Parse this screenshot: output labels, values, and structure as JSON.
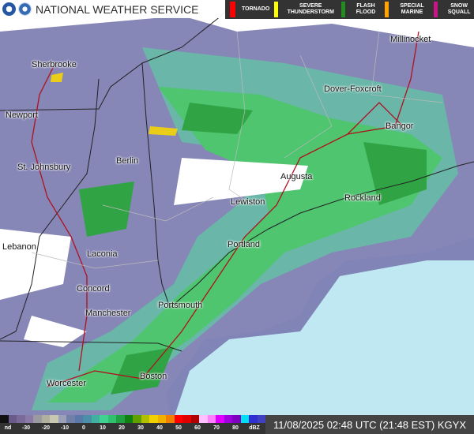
{
  "header": {
    "title": "NATIONAL WEATHER SERVICE",
    "logo_text": [
      "NOAA",
      "NWS"
    ]
  },
  "warnings": [
    {
      "label": "TORNADO",
      "color": "#ff0000"
    },
    {
      "label": "SEVERE THUNDERSTORM",
      "color": "#ffff00"
    },
    {
      "label": "FLASH FLOOD",
      "color": "#228b22"
    },
    {
      "label": "SPECIAL MARINE",
      "color": "#ffa500"
    },
    {
      "label": "SNOW SQUALL",
      "color": "#c71585"
    }
  ],
  "cities": [
    "Sherbrooke",
    "Millinocket",
    "Dover-Foxcroft",
    "Newport",
    "Bangor",
    "St. Johnsbury",
    "Berlin",
    "Augusta",
    "Rockland",
    "Lewiston",
    "Lebanon",
    "Portland",
    "Laconia",
    "Concord",
    "Portsmouth",
    "Manchester",
    "Boston",
    "Worcester"
  ],
  "legend": {
    "ticks": [
      "nd",
      "-30",
      "-20",
      "-10",
      "0",
      "10",
      "20",
      "30",
      "40",
      "50",
      "60",
      "70",
      "80",
      "dBZ"
    ],
    "colors": [
      "#111111",
      "#6a5a8c",
      "#7a6a9a",
      "#8a7aa8",
      "#9a9aa0",
      "#b0b0a0",
      "#c8c8b0",
      "#9aa0b8",
      "#7080a8",
      "#5a78a8",
      "#4a90a8",
      "#40b0a0",
      "#40d090",
      "#30c070",
      "#20a040",
      "#108010",
      "#60a000",
      "#b0c000",
      "#f0d000",
      "#f0b000",
      "#f08000",
      "#ff0000",
      "#e00000",
      "#b00000",
      "#ffc0ff",
      "#ff80ff",
      "#e000ff",
      "#a000e0",
      "#8000c0",
      "#00e0f0",
      "#3030d0",
      "#4040c0"
    ]
  },
  "timestamp": "11/08/2025 02:48 UTC (21:48 EST) KGYX"
}
